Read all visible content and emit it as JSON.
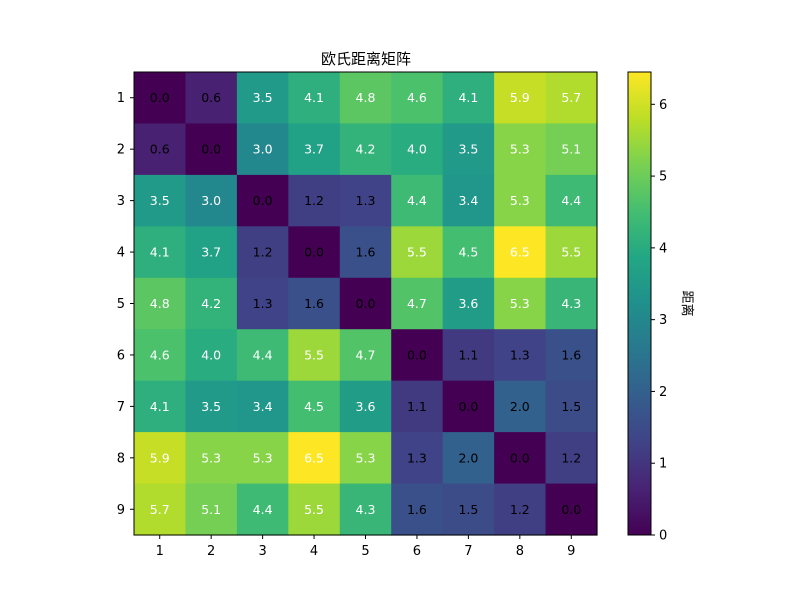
{
  "chart_data": {
    "type": "heatmap",
    "title": "欧氏距离矩阵",
    "x_categories": [
      "1",
      "2",
      "3",
      "4",
      "5",
      "6",
      "7",
      "8",
      "9"
    ],
    "y_categories": [
      "1",
      "2",
      "3",
      "4",
      "5",
      "6",
      "7",
      "8",
      "9"
    ],
    "matrix": [
      [
        0.0,
        0.6,
        3.5,
        4.1,
        4.8,
        4.6,
        4.1,
        5.9,
        5.7
      ],
      [
        0.6,
        0.0,
        3.0,
        3.7,
        4.2,
        4.0,
        3.5,
        5.3,
        5.1
      ],
      [
        3.5,
        3.0,
        0.0,
        1.2,
        1.3,
        4.4,
        3.4,
        5.3,
        4.4
      ],
      [
        4.1,
        3.7,
        1.2,
        0.0,
        1.6,
        5.5,
        4.5,
        6.5,
        5.5
      ],
      [
        4.8,
        4.2,
        1.3,
        1.6,
        0.0,
        4.7,
        3.6,
        5.3,
        4.3
      ],
      [
        4.6,
        4.0,
        4.4,
        5.5,
        4.7,
        0.0,
        1.1,
        1.3,
        1.6
      ],
      [
        4.1,
        3.5,
        3.4,
        4.5,
        3.6,
        1.1,
        0.0,
        2.0,
        1.5
      ],
      [
        5.9,
        5.3,
        5.3,
        6.5,
        5.3,
        1.3,
        2.0,
        0.0,
        1.2
      ],
      [
        5.7,
        5.1,
        4.4,
        5.5,
        4.3,
        1.6,
        1.5,
        1.2,
        0.0
      ]
    ],
    "value_range": [
      0,
      6.45
    ],
    "colormap": "viridis",
    "colorbar": {
      "label": "距离",
      "ticks": [
        0,
        1,
        2,
        3,
        4,
        5,
        6
      ]
    },
    "grid": false,
    "legend": "colorbar-right"
  }
}
